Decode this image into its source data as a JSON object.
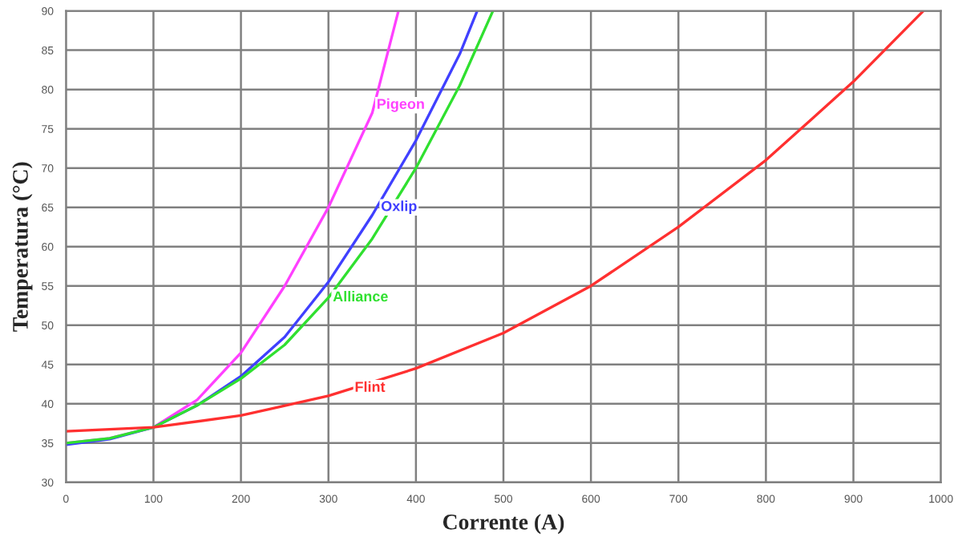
{
  "chart_data": {
    "type": "line",
    "xlabel": "Corrente (A)",
    "ylabel": "Temperatura (°C)",
    "xlim": [
      0,
      1000
    ],
    "xticks": [
      0,
      100,
      200,
      300,
      400,
      500,
      600,
      700,
      800,
      900,
      1000
    ],
    "ylim": [
      30,
      90
    ],
    "yticks": [
      30,
      35,
      40,
      45,
      50,
      55,
      60,
      65,
      70,
      75,
      80,
      85,
      90
    ],
    "grid": true,
    "line_style": "solid",
    "marker": "none",
    "series": [
      {
        "color": "#ff40ff",
        "x": [
          0,
          50,
          100,
          150,
          200,
          250,
          300,
          350,
          380
        ],
        "values": [
          35,
          35.6,
          37,
          40.5,
          46.5,
          55,
          65,
          77,
          90
        ]
      },
      {
        "color": "#4040ff",
        "x": [
          0,
          50,
          100,
          150,
          200,
          250,
          300,
          350,
          400,
          450,
          470
        ],
        "values": [
          34.8,
          35.5,
          37,
          39.8,
          43.5,
          48.5,
          55.5,
          64,
          73.5,
          84.5,
          90
        ]
      },
      {
        "color": "#30e030",
        "x": [
          0,
          50,
          100,
          150,
          200,
          250,
          300,
          350,
          400,
          450,
          488
        ],
        "values": [
          35,
          35.6,
          37,
          39.8,
          43.2,
          47.5,
          53.5,
          61,
          70,
          80.5,
          90
        ]
      },
      {
        "color": "#ff3030",
        "x": [
          0,
          100,
          200,
          300,
          400,
          500,
          600,
          700,
          800,
          900,
          980
        ],
        "values": [
          36.5,
          37,
          38.5,
          41,
          44.5,
          49,
          55,
          62.5,
          71,
          81,
          90
        ]
      }
    ],
    "annotations": [
      {
        "text": "Pigeon",
        "x": 355,
        "y": 78
      },
      {
        "text": "Oxlip",
        "x": 360,
        "y": 65
      },
      {
        "text": "Alliance",
        "x": 305,
        "y": 53.5
      },
      {
        "text": "Flint",
        "x": 330,
        "y": 42
      }
    ]
  }
}
